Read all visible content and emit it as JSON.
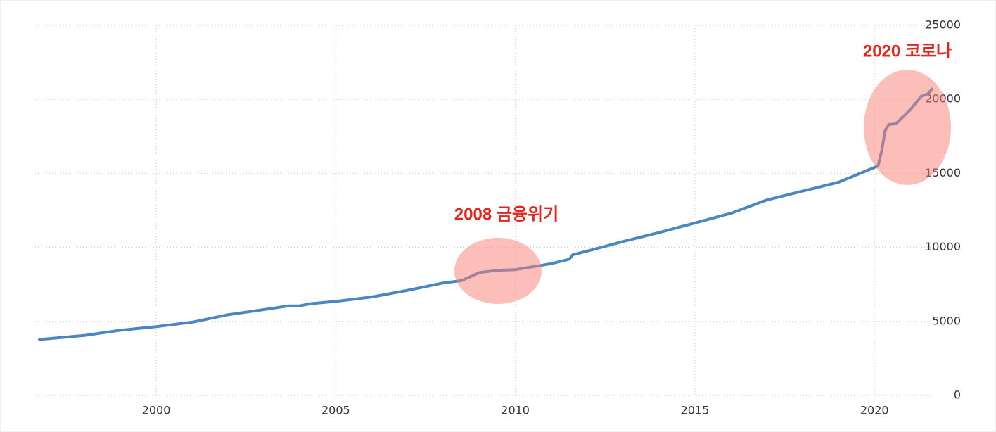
{
  "chart_data": {
    "type": "line",
    "x": [
      1996.75,
      1997,
      1998,
      1999,
      2000,
      2001,
      2002,
      2003,
      2003.7,
      2004,
      2004.3,
      2005,
      2006,
      2007,
      2008,
      2008.5,
      2009,
      2009.5,
      2010,
      2010.5,
      2011,
      2011.5,
      2011.6,
      2012,
      2013,
      2014,
      2015,
      2016,
      2017,
      2018,
      2019,
      2019.5,
      2020,
      2020.1,
      2020.2,
      2020.3,
      2020.4,
      2020.6,
      2021,
      2021.3,
      2021.5,
      2021.6
    ],
    "series": [
      {
        "color": "#4a86c0",
        "values": [
          3780,
          3830,
          4050,
          4400,
          4650,
          4950,
          5450,
          5800,
          6050,
          6050,
          6200,
          6350,
          6650,
          7100,
          7600,
          7750,
          8300,
          8450,
          8500,
          8700,
          8900,
          9200,
          9500,
          9750,
          10400,
          11000,
          11650,
          12300,
          13200,
          13800,
          14400,
          14900,
          15400,
          15500,
          16500,
          17900,
          18300,
          18350,
          19300,
          20200,
          20400,
          20700
        ]
      }
    ],
    "xlim": [
      1996.63,
      2021.7
    ],
    "xticks": [
      2000,
      2005,
      2010,
      2015,
      2020
    ],
    "ylim": [
      0,
      25000
    ],
    "yticks": [
      0,
      5000,
      10000,
      15000,
      20000,
      25000
    ],
    "grid": true,
    "annotations": [
      "2008 금융위기",
      "2020 코로나"
    ]
  }
}
